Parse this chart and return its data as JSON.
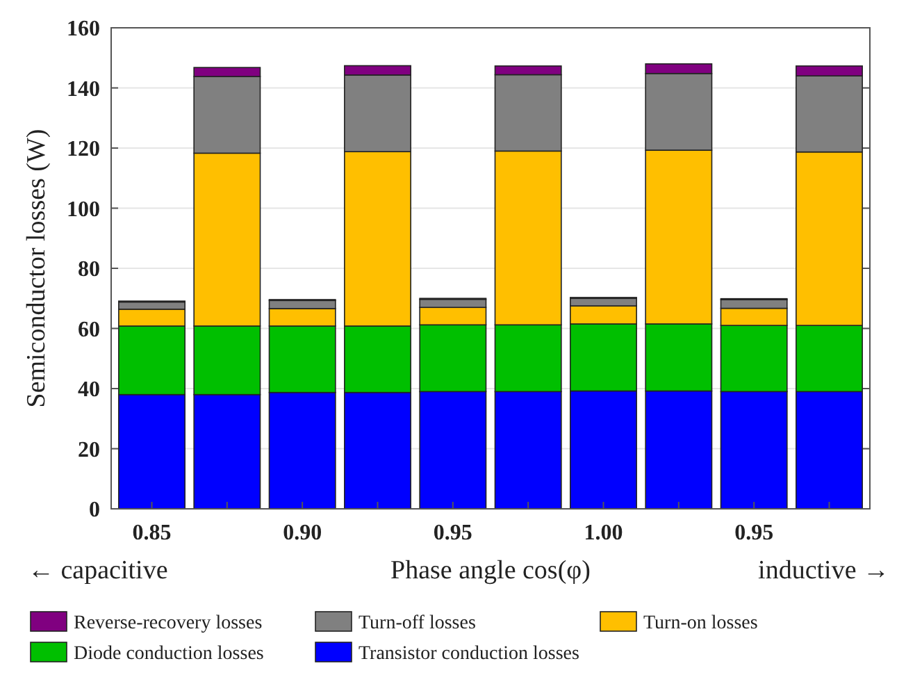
{
  "chart_data": {
    "type": "bar",
    "stacked": true,
    "xlabel": "Phase angle cos(φ)",
    "ylabel": "Semiconductor losses (W)",
    "categories": [
      "0.85",
      null,
      "0.90",
      null,
      "0.95",
      null,
      "1.00",
      null,
      "0.95",
      null
    ],
    "series": [
      {
        "name": "Transistor conduction losses",
        "color": "#0000ff",
        "values": [
          38,
          38,
          38.7,
          38.7,
          39,
          39,
          39.2,
          39.2,
          39,
          39
        ]
      },
      {
        "name": "Diode conduction losses",
        "color": "#00bf00",
        "values": [
          22.8,
          22.8,
          22.1,
          22.1,
          22.2,
          22.2,
          22.3,
          22.3,
          22,
          22
        ]
      },
      {
        "name": "Turn-on losses",
        "color": "#ffbf00",
        "values": [
          5.6,
          57.5,
          5.8,
          58,
          5.8,
          57.8,
          6,
          57.8,
          5.7,
          57.7
        ]
      },
      {
        "name": "Turn-off losses",
        "color": "#808080",
        "values": [
          2.4,
          25.5,
          2.7,
          25.5,
          2.7,
          25.4,
          2.5,
          25.5,
          2.9,
          25.3
        ]
      },
      {
        "name": "Reverse-recovery losses",
        "color": "#800080",
        "values": [
          0.3,
          3,
          0.3,
          3.1,
          0.3,
          2.9,
          0.3,
          3.2,
          0.3,
          3.3
        ]
      }
    ],
    "ylim": [
      0,
      160
    ],
    "yticks": [
      0,
      20,
      40,
      60,
      80,
      100,
      120,
      140,
      160
    ],
    "grid": "y",
    "legend": "bottom",
    "annotations": [
      "← capacitive",
      "inductive →"
    ]
  }
}
